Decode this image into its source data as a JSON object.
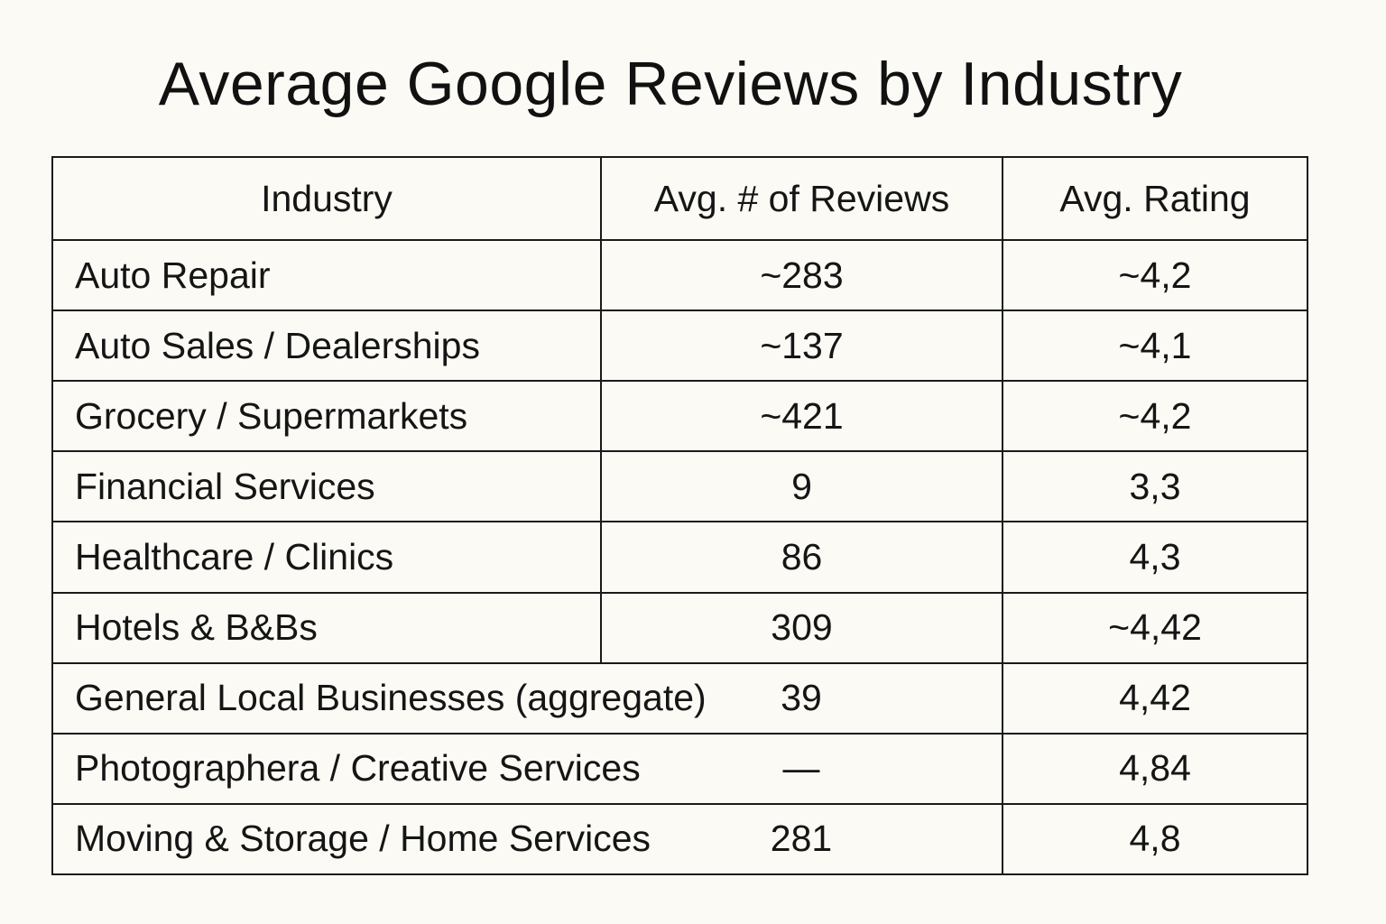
{
  "chart_data": {
    "type": "table",
    "title": "Average Google Reviews by Industry",
    "columns": [
      "Industry",
      "Avg. # of Reviews",
      "Avg. Rating"
    ],
    "rows": [
      {
        "industry": "Auto Repair",
        "reviews": "~283",
        "rating": "~4,2",
        "merged": false
      },
      {
        "industry": "Auto Sales / Dealerships",
        "reviews": "~137",
        "rating": "~4,1",
        "merged": false
      },
      {
        "industry": "Grocery / Supermarkets",
        "reviews": "~421",
        "rating": "~4,2",
        "merged": false
      },
      {
        "industry": "Financial Services",
        "reviews": "9",
        "rating": "3,3",
        "merged": false
      },
      {
        "industry": "Healthcare / Clinics",
        "reviews": "86",
        "rating": "4,3",
        "merged": false
      },
      {
        "industry": "Hotels & B&Bs",
        "reviews": "309",
        "rating": "~4,42",
        "merged": false
      },
      {
        "industry": "General Local Businesses (aggregate)",
        "reviews": "39",
        "rating": "4,42",
        "merged": true
      },
      {
        "industry": "Photographera / Creative Services",
        "reviews": "—",
        "rating": "4,84",
        "merged": true
      },
      {
        "industry": "Moving & Storage / Home Services",
        "reviews": "281",
        "rating": "4,8",
        "merged": true
      }
    ]
  }
}
